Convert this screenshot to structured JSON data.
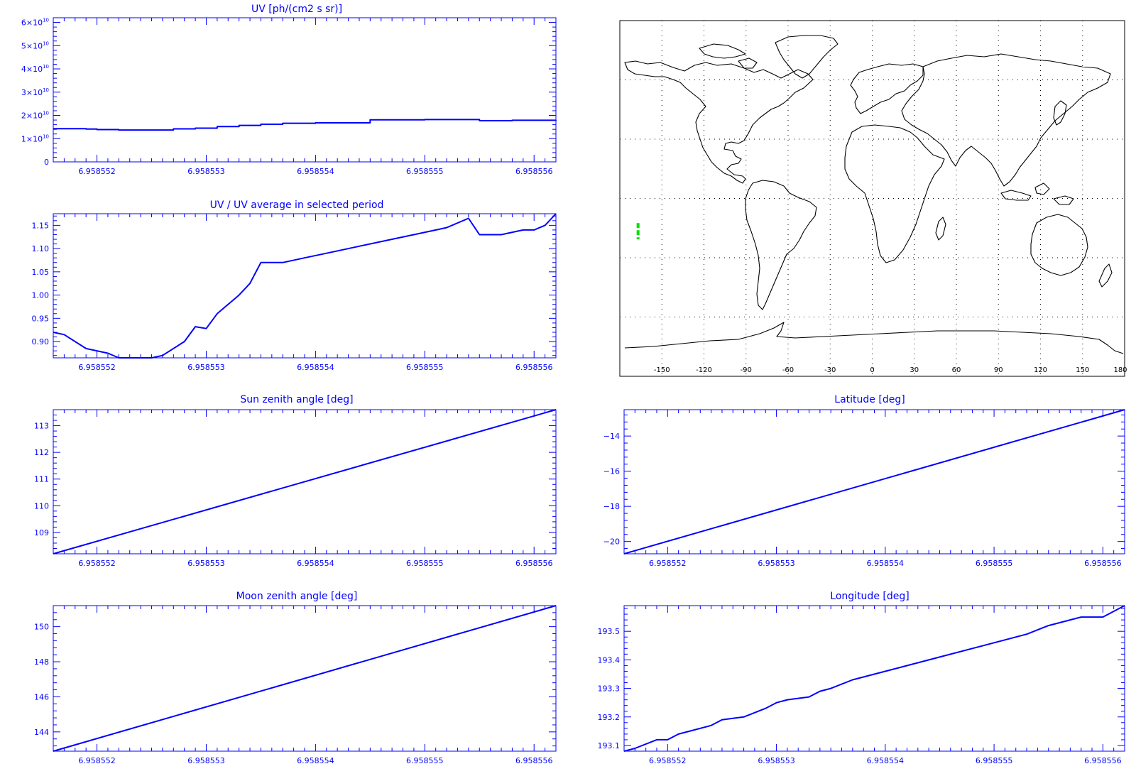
{
  "colors": {
    "axis": "#0000ff",
    "line": "#0000ff",
    "map_outline": "#000000",
    "grid": "#000000",
    "track": "#00dd00"
  },
  "chart_data": [
    {
      "type": "line",
      "title": "UV [ph/(cm2 s sr)]",
      "xlabel": "",
      "ylabel": "",
      "xlim": [
        6.9585516,
        6.9585562
      ],
      "ylim": [
        0,
        62000000000.0
      ],
      "x_ticks": [
        6.958552,
        6.958553,
        6.958554,
        6.958555,
        6.958556
      ],
      "x_tick_labels": [
        "6.958552",
        "6.958553",
        "6.958554",
        "6.958555",
        "6.958556"
      ],
      "y_ticks": [
        0,
        10000000000.0,
        20000000000.0,
        30000000000.0,
        40000000000.0,
        50000000000.0,
        60000000000.0
      ],
      "y_tick_labels": [
        {
          "base": "0",
          "exp": ""
        },
        {
          "base": "1×10",
          "exp": "10"
        },
        {
          "base": "2×10",
          "exp": "10"
        },
        {
          "base": "3×10",
          "exp": "10"
        },
        {
          "base": "4×10",
          "exp": "10"
        },
        {
          "base": "5×10",
          "exp": "10"
        },
        {
          "base": "6×10",
          "exp": "10"
        }
      ],
      "step": true,
      "x": [
        6.9585516,
        6.9585519,
        6.958552,
        6.9585522,
        6.9585524,
        6.9585527,
        6.9585529,
        6.9585531,
        6.9585533,
        6.9585535,
        6.9585537,
        6.958554,
        6.9585545,
        6.958555,
        6.9585555,
        6.9585558,
        6.9585562
      ],
      "y": [
        14300000000.0,
        14100000000.0,
        13900000000.0,
        13700000000.0,
        13700000000.0,
        14200000000.0,
        14500000000.0,
        15200000000.0,
        15700000000.0,
        16200000000.0,
        16600000000.0,
        16800000000.0,
        18100000000.0,
        18200000000.0,
        17700000000.0,
        17900000000.0,
        18000000000.0
      ]
    },
    {
      "type": "line",
      "title": "UV / UV average in selected period",
      "xlabel": "",
      "ylabel": "",
      "xlim": [
        6.9585516,
        6.9585562
      ],
      "ylim": [
        0.865,
        1.175
      ],
      "x_ticks": [
        6.958552,
        6.958553,
        6.958554,
        6.958555,
        6.958556
      ],
      "x_tick_labels": [
        "6.958552",
        "6.958553",
        "6.958554",
        "6.958555",
        "6.958556"
      ],
      "y_ticks": [
        0.9,
        0.95,
        1.0,
        1.05,
        1.1,
        1.15
      ],
      "y_tick_labels": [
        "0.90",
        "0.95",
        "1.00",
        "1.05",
        "1.10",
        "1.15"
      ],
      "x": [
        6.9585516,
        6.9585517,
        6.9585519,
        6.9585521,
        6.9585522,
        6.9585523,
        6.9585525,
        6.9585526,
        6.9585528,
        6.9585529,
        6.958553,
        6.9585531,
        6.9585533,
        6.9585534,
        6.9585535,
        6.9585537,
        6.9585539,
        6.9585541,
        6.9585544,
        6.9585547,
        6.9585549,
        6.9585552,
        6.9585554,
        6.9585555,
        6.9585557,
        6.9585559,
        6.958556,
        6.9585561,
        6.9585562
      ],
      "y": [
        0.92,
        0.915,
        0.885,
        0.875,
        0.865,
        0.865,
        0.865,
        0.87,
        0.9,
        0.932,
        0.928,
        0.96,
        1.0,
        1.025,
        1.07,
        1.07,
        1.08,
        1.09,
        1.105,
        1.12,
        1.13,
        1.145,
        1.165,
        1.13,
        1.13,
        1.14,
        1.14,
        1.15,
        1.175
      ]
    },
    {
      "type": "line",
      "title": "Sun zenith angle [deg]",
      "xlabel": "",
      "ylabel": "",
      "xlim": [
        6.9585516,
        6.9585562
      ],
      "ylim": [
        108.2,
        113.6
      ],
      "x_ticks": [
        6.958552,
        6.958553,
        6.958554,
        6.958555,
        6.958556
      ],
      "x_tick_labels": [
        "6.958552",
        "6.958553",
        "6.958554",
        "6.958555",
        "6.958556"
      ],
      "y_ticks": [
        109,
        110,
        111,
        112,
        113
      ],
      "y_tick_labels": [
        "109",
        "110",
        "111",
        "112",
        "113"
      ],
      "x": [
        6.9585516,
        6.9585562
      ],
      "y": [
        108.2,
        113.6
      ]
    },
    {
      "type": "line",
      "title": "Moon zenith angle [deg]",
      "xlabel": "",
      "ylabel": "",
      "xlim": [
        6.9585516,
        6.9585562
      ],
      "ylim": [
        142.9,
        151.2
      ],
      "x_ticks": [
        6.958552,
        6.958553,
        6.958554,
        6.958555,
        6.958556
      ],
      "x_tick_labels": [
        "6.958552",
        "6.958553",
        "6.958554",
        "6.958555",
        "6.958556"
      ],
      "y_ticks": [
        144,
        146,
        148,
        150
      ],
      "y_tick_labels": [
        "144",
        "146",
        "148",
        "150"
      ],
      "x": [
        6.9585516,
        6.9585562
      ],
      "y": [
        142.9,
        151.2
      ]
    },
    {
      "type": "line",
      "title": "Latitude [deg]",
      "xlabel": "",
      "ylabel": "",
      "xlim": [
        6.9585516,
        6.9585562
      ],
      "ylim": [
        -20.7,
        -12.5
      ],
      "x_ticks": [
        6.958552,
        6.958553,
        6.958554,
        6.958555,
        6.958556
      ],
      "x_tick_labels": [
        "6.958552",
        "6.958553",
        "6.958554",
        "6.958555",
        "6.958556"
      ],
      "y_ticks": [
        -20,
        -18,
        -16,
        -14
      ],
      "y_tick_labels": [
        "−20",
        "−18",
        "−16",
        "−14"
      ],
      "x": [
        6.9585516,
        6.9585562
      ],
      "y": [
        -20.7,
        -12.5
      ]
    },
    {
      "type": "line",
      "title": "Longitude [deg]",
      "xlabel": "",
      "ylabel": "",
      "xlim": [
        6.9585516,
        6.9585562
      ],
      "ylim": [
        193.08,
        193.59
      ],
      "x_ticks": [
        6.958552,
        6.958553,
        6.958554,
        6.958555,
        6.958556
      ],
      "x_tick_labels": [
        "6.958552",
        "6.958553",
        "6.958554",
        "6.958555",
        "6.958556"
      ],
      "y_ticks": [
        193.1,
        193.2,
        193.3,
        193.4,
        193.5
      ],
      "y_tick_labels": [
        "193.1",
        "193.2",
        "193.3",
        "193.4",
        "193.5"
      ],
      "x": [
        6.9585516,
        6.9585517,
        6.9585519,
        6.958552,
        6.9585521,
        6.9585522,
        6.9585524,
        6.9585525,
        6.9585527,
        6.9585529,
        6.958553,
        6.9585531,
        6.9585533,
        6.9585534,
        6.9585535,
        6.9585537,
        6.958554,
        6.9585545,
        6.958555,
        6.9585553,
        6.9585555,
        6.9585556,
        6.9585558,
        6.958556,
        6.9585561,
        6.9585562
      ],
      "y": [
        193.08,
        193.09,
        193.12,
        193.12,
        193.14,
        193.15,
        193.17,
        193.19,
        193.2,
        193.23,
        193.25,
        193.26,
        193.27,
        193.29,
        193.3,
        193.33,
        193.36,
        193.41,
        193.46,
        193.49,
        193.52,
        193.53,
        193.55,
        193.55,
        193.57,
        193.59
      ]
    }
  ],
  "map": {
    "type": "map",
    "projection": "equirectangular",
    "lon_ticks": [
      -150,
      -120,
      -90,
      -60,
      -30,
      0,
      30,
      60,
      90,
      120,
      150,
      180
    ],
    "lon_tick_labels": [
      "-150",
      "-120",
      "-90",
      "-60",
      "-30",
      "0",
      "30",
      "60",
      "90",
      "120",
      "150",
      "180"
    ],
    "grid": "dotted",
    "track_lon": -167,
    "track_lat": [
      -12.5,
      -20.7
    ]
  }
}
